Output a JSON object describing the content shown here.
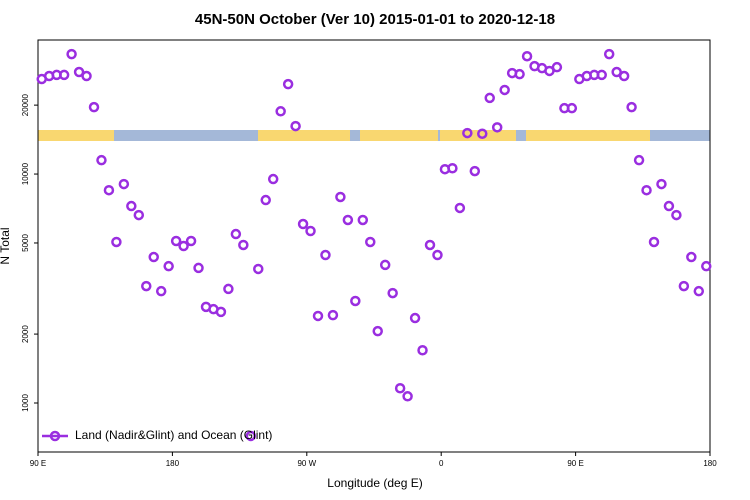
{
  "chart_data": {
    "type": "scatter",
    "title": "45N-50N October (Ver 10)   2015-01-01 to 2020-12-18",
    "x_label": "Longitude (deg E)",
    "y_label": "N Total",
    "xlim": [
      90,
      540
    ],
    "ylim": [
      611,
      38500
    ],
    "y_scale": "log",
    "xticks": [
      {
        "value": 90,
        "label": "90 E"
      },
      180,
      {
        "value": 270,
        "label": "90 W"
      },
      {
        "value": 360,
        "label": "0"
      },
      {
        "value": 450,
        "label": "90 E"
      },
      {
        "value": 540,
        "label": "180"
      }
    ],
    "yticks": [
      1000,
      2000,
      5000,
      10000,
      20000
    ],
    "legend_position": "lower left",
    "series": [
      {
        "name": "Land (Nadir&Glint) and Ocean (Glint)",
        "color": "#9a2ee0",
        "x": [
          92.5,
          97.5,
          102.5,
          107.5,
          112.5,
          117.5,
          122.5,
          127.5,
          132.5,
          137.5,
          142.5,
          147.5,
          152.5,
          157.5,
          162.5,
          167.5,
          172.5,
          177.5,
          182.5,
          187.5,
          192.5,
          197.5,
          202.5,
          207.5,
          212.5,
          217.5,
          222.5,
          227.5,
          232.5,
          237.5,
          242.5,
          247.5,
          252.5,
          257.5,
          262.5,
          267.5,
          272.5,
          277.5,
          282.5,
          287.5,
          292.5,
          297.5,
          302.5,
          307.5,
          312.5,
          317.5,
          322.5,
          327.5,
          332.5,
          337.5,
          342.5,
          347.5,
          352.5,
          357.5,
          362.5,
          367.5,
          372.5,
          377.5,
          382.5,
          387.5,
          392.5,
          397.5,
          402.5,
          407.5,
          412.5,
          417.5,
          422.5,
          427.5,
          432.5,
          437.5,
          442.5,
          447.5,
          452.5,
          457.5,
          462.5,
          467.5,
          472.5,
          477.5,
          482.5,
          487.5,
          492.5,
          497.5,
          502.5,
          507.5,
          512.5,
          517.5,
          522.5,
          527.5,
          532.5,
          537.5
        ],
        "values": [
          26000,
          26800,
          27100,
          27100,
          33400,
          27900,
          26800,
          19600,
          11500,
          8500,
          5050,
          9040,
          7250,
          6620,
          3240,
          4340,
          3080,
          3960,
          5100,
          4850,
          5100,
          3890,
          2630,
          2570,
          2500,
          3150,
          5470,
          4900,
          718,
          3850,
          7700,
          9510,
          18800,
          24700,
          16200,
          6050,
          5640,
          2400,
          4430,
          2420,
          7940,
          6300,
          2790,
          6300,
          5050,
          2060,
          4010,
          3020,
          1160,
          1070,
          2350,
          1700,
          4900,
          4430,
          10500,
          10600,
          7110,
          15100,
          10300,
          15000,
          21500,
          16000,
          23300,
          27600,
          27300,
          32700,
          29600,
          29000,
          28200,
          29300,
          19400,
          19400,
          26000,
          26800,
          27100,
          27100,
          33400,
          27900,
          26800,
          19600,
          11500,
          8500,
          5050,
          9040,
          7250,
          6620,
          3240,
          4340,
          3080,
          3960
        ]
      }
    ]
  }
}
